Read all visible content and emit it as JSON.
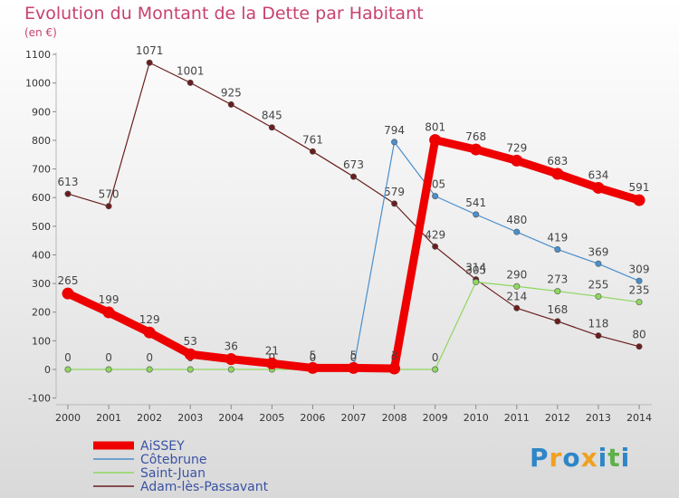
{
  "title": "Evolution du Montant de la Dette par Habitant",
  "subtitle": "(en €)",
  "logo": {
    "text": "Proxiti"
  },
  "chart_data": {
    "type": "line",
    "x": [
      "2000",
      "2001",
      "2002",
      "2003",
      "2004",
      "2005",
      "2006",
      "2007",
      "2008",
      "2009",
      "2010",
      "2011",
      "2012",
      "2013",
      "2014"
    ],
    "ylim": [
      -100,
      1100
    ],
    "yticks": [
      "-100",
      "0",
      "100",
      "200",
      "300",
      "400",
      "500",
      "600",
      "700",
      "800",
      "900",
      "1000",
      "1100"
    ],
    "grid": false,
    "legend_position": "bottom-left",
    "series": [
      {
        "name": "Adam-lès-Passavant",
        "color": "#6b1e1e",
        "values": [
          613,
          570,
          1071,
          1001,
          925,
          845,
          761,
          673,
          579,
          429,
          314,
          214,
          168,
          118,
          80
        ],
        "labels": [
          "613",
          "570",
          "1071",
          "1001",
          "925",
          "845",
          "761",
          "673",
          "579",
          "429",
          "314",
          "214",
          "168",
          "118",
          "80"
        ]
      },
      {
        "name": "Saint-Juan",
        "color": "#8ed85f",
        "values": [
          0,
          0,
          0,
          0,
          0,
          0,
          0,
          0,
          0,
          0,
          305,
          290,
          273,
          255,
          235
        ],
        "labels": [
          "0",
          "0",
          "0",
          "0",
          "0",
          "0",
          "0",
          "0",
          "0",
          "0",
          "305",
          "290",
          "273",
          "255",
          "235"
        ]
      },
      {
        "name": "Côtebrune",
        "color": "#4a8fcc",
        "values": [
          null,
          null,
          null,
          null,
          null,
          null,
          null,
          null,
          794,
          605,
          541,
          480,
          419,
          369,
          309
        ],
        "labels": [
          null,
          null,
          null,
          null,
          null,
          null,
          null,
          null,
          "794",
          "605",
          "541",
          "480",
          "419",
          "369",
          "309"
        ]
      },
      {
        "name": "AiSSEY",
        "color": "#ee0000",
        "values": [
          265,
          199,
          129,
          53,
          36,
          21,
          5,
          5,
          3,
          801,
          768,
          729,
          683,
          634,
          591
        ],
        "labels": [
          "265",
          "199",
          "129",
          "53",
          "36",
          "21",
          "5",
          "5",
          "3",
          "801",
          "768",
          "729",
          "683",
          "634",
          "591"
        ]
      }
    ],
    "legend_order": [
      "AiSSEY",
      "Côtebrune",
      "Saint-Juan",
      "Adam-lès-Passavant"
    ]
  }
}
